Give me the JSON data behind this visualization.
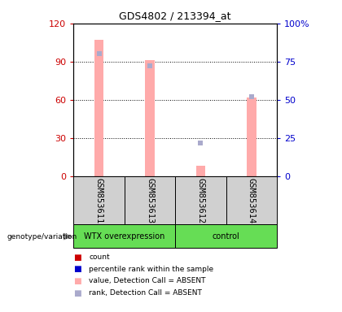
{
  "title": "GDS4802 / 213394_at",
  "samples": [
    "GSM853611",
    "GSM853613",
    "GSM853612",
    "GSM853614"
  ],
  "bar_values": [
    107,
    91,
    8,
    62
  ],
  "rank_values": [
    80,
    72,
    22,
    52
  ],
  "rank_absent_3": null,
  "bar_color_absent": "#ffaaaa",
  "rank_color_absent": "#aaaacc",
  "left_yticks": [
    0,
    30,
    60,
    90,
    120
  ],
  "right_yticks": [
    0,
    25,
    50,
    75,
    100
  ],
  "right_yticklabels": [
    "0",
    "25",
    "50",
    "75",
    "100%"
  ],
  "ylim_left": [
    0,
    120
  ],
  "ylim_right": [
    0,
    100
  ],
  "left_tick_color": "#cc0000",
  "right_tick_color": "#0000cc",
  "group1_label": "WTX overexpression",
  "group2_label": "control",
  "group1_color": "#66dd55",
  "group2_color": "#66dd55",
  "gray_box_color": "#d0d0d0",
  "legend_items": [
    {
      "label": "count",
      "color": "#cc0000"
    },
    {
      "label": "percentile rank within the sample",
      "color": "#0000cc"
    },
    {
      "label": "value, Detection Call = ABSENT",
      "color": "#ffaaaa"
    },
    {
      "label": "rank, Detection Call = ABSENT",
      "color": "#aaaacc"
    }
  ],
  "bar_width": 0.18,
  "n_samples": 4,
  "rank_sample3_none": true
}
